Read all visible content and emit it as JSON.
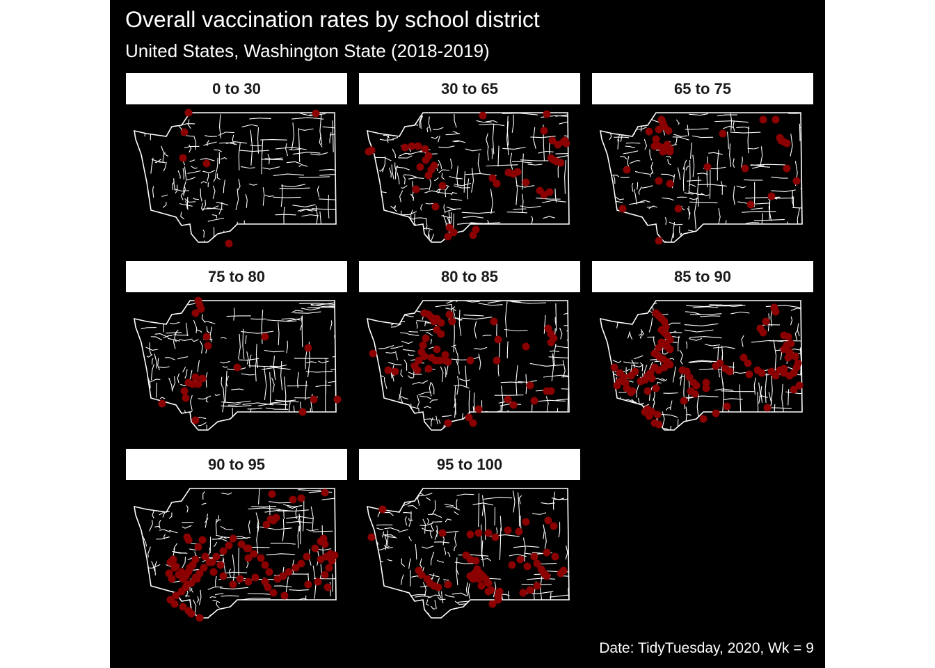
{
  "title": "Overall vaccination rates by school district",
  "subtitle": "United States, Washington State (2018-2019)",
  "caption": "Date: TidyTuesday, 2020, Wk = 9",
  "colors": {
    "background": "#000000",
    "boundaries": "#ffffff",
    "points": "#8b0000",
    "strip": "#ffffff",
    "strip_text": "#1a1a1a"
  },
  "panels": [
    {
      "label": "0 to 30"
    },
    {
      "label": "30 to 65"
    },
    {
      "label": "65 to 75"
    },
    {
      "label": "75 to 80"
    },
    {
      "label": "80 to 85"
    },
    {
      "label": "85 to 90"
    },
    {
      "label": "90 to 95"
    },
    {
      "label": "95 to 100"
    }
  ]
}
